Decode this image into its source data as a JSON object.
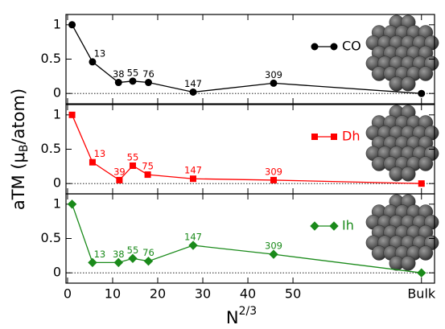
{
  "chart_data": [
    {
      "type": "line",
      "legend": "right",
      "zero_line": true,
      "marker": "circle",
      "xlim": [
        -0.35,
        81.4
      ],
      "ylim": [
        -0.15,
        1.15
      ],
      "yticks": [
        0,
        {
          "value": 0.5,
          "label": "0.5"
        },
        1
      ],
      "series": [
        {
          "name": "CO",
          "color": "#000000",
          "x": [
            1,
            5.53,
            11.3,
            14.46,
            17.94,
            27.85,
            45.7,
            78.5
          ],
          "values": [
            1,
            0.46,
            0.16,
            0.18,
            0.16,
            0.02,
            0.15,
            0
          ],
          "point_labels": [
            null,
            "13",
            "38",
            "55",
            "76",
            "147",
            "309",
            null
          ]
        }
      ]
    },
    {
      "type": "line",
      "legend": "right",
      "zero_line": true,
      "marker": "square",
      "xlim": [
        -0.35,
        81.4
      ],
      "ylim": [
        -0.15,
        1.15
      ],
      "yticks": [
        0,
        {
          "value": 0.5,
          "label": "0.5"
        },
        1
      ],
      "ylabel": {
        "main": "aTM (μ",
        "sub": "B",
        "end": "/atom)"
      },
      "series": [
        {
          "name": "Dh",
          "color": "#ff0000",
          "x": [
            1,
            5.53,
            11.5,
            14.46,
            17.78,
            27.85,
            45.7,
            78.5
          ],
          "values": [
            1,
            0.31,
            0.05,
            0.26,
            0.13,
            0.07,
            0.05,
            0
          ],
          "point_labels": [
            null,
            "13",
            "39",
            "55",
            "75",
            "147",
            "309",
            null
          ]
        }
      ]
    },
    {
      "type": "line",
      "legend": "right",
      "zero_line": true,
      "marker": "diamond",
      "xlim": [
        -0.35,
        81.4
      ],
      "ylim": [
        -0.15,
        1.15
      ],
      "yticks": [
        0,
        {
          "value": 0.5,
          "label": "0.5"
        },
        1
      ],
      "xticks": [
        0,
        10,
        20,
        30,
        40,
        50,
        {
          "value": 78.5,
          "label": "Bulk"
        }
      ],
      "xlabel": {
        "main": "N",
        "sup": "2/3"
      },
      "series": [
        {
          "name": "Ih",
          "color": "#1a8a1a",
          "x": [
            1,
            5.53,
            11.3,
            14.46,
            17.94,
            27.85,
            45.7,
            78.5
          ],
          "values": [
            1,
            0.15,
            0.15,
            0.21,
            0.17,
            0.4,
            0.27,
            0
          ],
          "point_labels": [
            null,
            "13",
            "38",
            "55",
            "76",
            "147",
            "309",
            null
          ]
        }
      ]
    }
  ]
}
